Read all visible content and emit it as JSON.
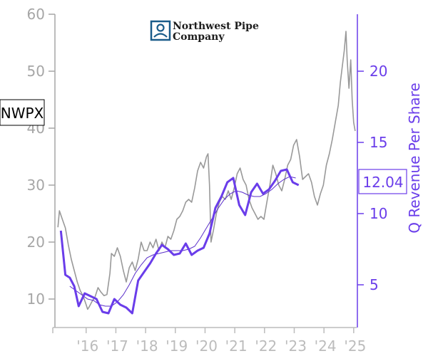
{
  "chart_data": {
    "type": "line",
    "ticker": "NWPX",
    "logo": {
      "line1": "Northwest Pipe",
      "line2": "Company",
      "icon": "person-badge-icon"
    },
    "ylabel_right": "Q Revenue Per Share",
    "current_value_label": "12.04",
    "x_axis": {
      "range": [
        2014.95,
        2025.1
      ],
      "ticks": [
        {
          "label": "'16",
          "value": 2016.0
        },
        {
          "label": "'17",
          "value": 2017.0
        },
        {
          "label": "'18",
          "value": 2018.0
        },
        {
          "label": "'19",
          "value": 2019.0
        },
        {
          "label": "'20",
          "value": 2020.0
        },
        {
          "label": "'21",
          "value": 2021.0
        },
        {
          "label": "'22",
          "value": 2022.0
        },
        {
          "label": "'23",
          "value": 2023.0
        },
        {
          "label": "'24",
          "value": 2024.0
        },
        {
          "label": "'25",
          "value": 2025.0
        }
      ]
    },
    "y_left": {
      "range": [
        5,
        60
      ],
      "ticks": [
        {
          "label": "10",
          "value": 10
        },
        {
          "label": "20",
          "value": 20
        },
        {
          "label": "30",
          "value": 30
        },
        {
          "label": "40",
          "value": 40
        },
        {
          "label": "50",
          "value": 50
        },
        {
          "label": "60",
          "value": 60
        }
      ]
    },
    "y_right": {
      "range": [
        2,
        24
      ],
      "ticks": [
        {
          "label": "5",
          "value": 5
        },
        {
          "label": "10",
          "value": 10
        },
        {
          "label": "15",
          "value": 15
        },
        {
          "label": "20",
          "value": 20
        }
      ]
    },
    "colors": {
      "price": "#999999",
      "revenue": "#6a3dea",
      "revenue_avg": "#5a2fc9",
      "left_axis": "#a6a6a6",
      "x_axis": "#bcbcbc"
    },
    "series": [
      {
        "axis": "left",
        "values": [
          [
            2015.05,
            22.6
          ],
          [
            2015.1,
            25.5
          ],
          [
            2015.2,
            24.0
          ],
          [
            2015.3,
            22.5
          ],
          [
            2015.4,
            19.5
          ],
          [
            2015.5,
            17.0
          ],
          [
            2015.6,
            15.0
          ],
          [
            2015.7,
            13.0
          ],
          [
            2015.8,
            11.5
          ],
          [
            2015.9,
            10.5
          ],
          [
            2016.0,
            9.0
          ],
          [
            2016.05,
            8.2
          ],
          [
            2016.1,
            8.6
          ],
          [
            2016.2,
            9.6
          ],
          [
            2016.3,
            10.4
          ],
          [
            2016.4,
            12.0
          ],
          [
            2016.5,
            11.2
          ],
          [
            2016.6,
            10.6
          ],
          [
            2016.7,
            10.8
          ],
          [
            2016.8,
            14.5
          ],
          [
            2016.85,
            18.0
          ],
          [
            2016.95,
            17.5
          ],
          [
            2017.05,
            19.0
          ],
          [
            2017.15,
            17.5
          ],
          [
            2017.25,
            15.0
          ],
          [
            2017.35,
            13.0
          ],
          [
            2017.45,
            15.5
          ],
          [
            2017.55,
            16.5
          ],
          [
            2017.65,
            15.0
          ],
          [
            2017.75,
            17.0
          ],
          [
            2017.85,
            20.0
          ],
          [
            2017.95,
            18.5
          ],
          [
            2018.05,
            18.5
          ],
          [
            2018.15,
            20.0
          ],
          [
            2018.25,
            19.0
          ],
          [
            2018.35,
            20.5
          ],
          [
            2018.45,
            18.5
          ],
          [
            2018.55,
            20.0
          ],
          [
            2018.65,
            19.0
          ],
          [
            2018.75,
            21.0
          ],
          [
            2018.85,
            20.5
          ],
          [
            2018.95,
            22.0
          ],
          [
            2019.05,
            24.0
          ],
          [
            2019.15,
            24.5
          ],
          [
            2019.25,
            25.5
          ],
          [
            2019.35,
            27.0
          ],
          [
            2019.45,
            27.5
          ],
          [
            2019.55,
            27.0
          ],
          [
            2019.65,
            29.5
          ],
          [
            2019.75,
            32.5
          ],
          [
            2019.85,
            34.0
          ],
          [
            2019.95,
            33.0
          ],
          [
            2020.05,
            35.0
          ],
          [
            2020.1,
            35.5
          ],
          [
            2020.15,
            30.0
          ],
          [
            2020.2,
            20.0
          ],
          [
            2020.28,
            22.0
          ],
          [
            2020.38,
            25.0
          ],
          [
            2020.48,
            27.0
          ],
          [
            2020.58,
            28.0
          ],
          [
            2020.68,
            27.5
          ],
          [
            2020.78,
            29.0
          ],
          [
            2020.88,
            27.5
          ],
          [
            2020.98,
            29.5
          ],
          [
            2021.08,
            32.0
          ],
          [
            2021.18,
            33.0
          ],
          [
            2021.28,
            31.0
          ],
          [
            2021.38,
            30.0
          ],
          [
            2021.48,
            27.5
          ],
          [
            2021.58,
            26.0
          ],
          [
            2021.68,
            25.0
          ],
          [
            2021.78,
            24.0
          ],
          [
            2021.88,
            24.5
          ],
          [
            2021.98,
            24.0
          ],
          [
            2022.08,
            27.0
          ],
          [
            2022.18,
            30.0
          ],
          [
            2022.28,
            33.5
          ],
          [
            2022.38,
            32.0
          ],
          [
            2022.48,
            30.0
          ],
          [
            2022.58,
            29.0
          ],
          [
            2022.68,
            31.0
          ],
          [
            2022.78,
            33.5
          ],
          [
            2022.88,
            34.5
          ],
          [
            2022.98,
            37.0
          ],
          [
            2023.08,
            38.0
          ],
          [
            2023.18,
            35.0
          ],
          [
            2023.28,
            31.0
          ],
          [
            2023.38,
            31.5
          ],
          [
            2023.48,
            32.0
          ],
          [
            2023.58,
            30.5
          ],
          [
            2023.68,
            28.0
          ],
          [
            2023.78,
            26.5
          ],
          [
            2023.88,
            28.5
          ],
          [
            2023.98,
            30.0
          ],
          [
            2024.08,
            33.5
          ],
          [
            2024.18,
            35.5
          ],
          [
            2024.28,
            38.0
          ],
          [
            2024.38,
            41.0
          ],
          [
            2024.48,
            44.0
          ],
          [
            2024.55,
            48.0
          ],
          [
            2024.62,
            51.0
          ],
          [
            2024.68,
            53.5
          ],
          [
            2024.74,
            57.0
          ],
          [
            2024.78,
            52.0
          ],
          [
            2024.84,
            47.0
          ],
          [
            2024.9,
            52.0
          ],
          [
            2024.95,
            45.0
          ],
          [
            2025.0,
            41.0
          ],
          [
            2025.05,
            39.5
          ]
        ]
      },
      {
        "axis": "right",
        "values": [
          [
            2015.15,
            8.8
          ],
          [
            2015.3,
            5.7
          ],
          [
            2015.45,
            5.5
          ],
          [
            2015.6,
            4.9
          ],
          [
            2015.75,
            3.5
          ],
          [
            2015.95,
            4.4
          ],
          [
            2016.15,
            4.2
          ],
          [
            2016.35,
            4.0
          ],
          [
            2016.55,
            3.1
          ],
          [
            2016.75,
            3.0
          ],
          [
            2016.95,
            4.0
          ],
          [
            2017.15,
            3.6
          ],
          [
            2017.35,
            3.4
          ],
          [
            2017.55,
            3.0
          ],
          [
            2017.75,
            5.3
          ],
          [
            2017.95,
            5.9
          ],
          [
            2018.15,
            6.5
          ],
          [
            2018.35,
            7.2
          ],
          [
            2018.55,
            7.8
          ],
          [
            2018.75,
            7.5
          ],
          [
            2018.95,
            7.1
          ],
          [
            2019.15,
            7.2
          ],
          [
            2019.35,
            7.9
          ],
          [
            2019.55,
            7.1
          ],
          [
            2019.75,
            7.4
          ],
          [
            2019.95,
            7.6
          ],
          [
            2020.15,
            8.6
          ],
          [
            2020.35,
            10.4
          ],
          [
            2020.55,
            11.2
          ],
          [
            2020.75,
            12.2
          ],
          [
            2020.95,
            12.5
          ],
          [
            2021.15,
            10.6
          ],
          [
            2021.35,
            9.9
          ],
          [
            2021.55,
            11.5
          ],
          [
            2021.75,
            12.1
          ],
          [
            2021.95,
            11.4
          ],
          [
            2022.15,
            11.7
          ],
          [
            2022.35,
            12.3
          ],
          [
            2022.55,
            13.0
          ],
          [
            2022.75,
            13.1
          ],
          [
            2022.95,
            12.2
          ],
          [
            2023.15,
            12.0
          ]
        ]
      },
      {
        "axis": "right",
        "values": [
          [
            2015.45,
            4.9
          ],
          [
            2015.65,
            4.6
          ],
          [
            2015.85,
            4.3
          ],
          [
            2016.05,
            4.0
          ],
          [
            2016.25,
            3.9
          ],
          [
            2016.45,
            3.6
          ],
          [
            2016.65,
            3.5
          ],
          [
            2016.85,
            3.5
          ],
          [
            2017.05,
            3.8
          ],
          [
            2017.25,
            4.3
          ],
          [
            2017.45,
            5.0
          ],
          [
            2017.65,
            5.8
          ],
          [
            2017.85,
            6.4
          ],
          [
            2018.05,
            6.9
          ],
          [
            2018.25,
            7.1
          ],
          [
            2018.45,
            7.2
          ],
          [
            2018.65,
            7.3
          ],
          [
            2018.85,
            7.4
          ],
          [
            2019.05,
            7.4
          ],
          [
            2019.25,
            7.4
          ],
          [
            2019.45,
            7.5
          ],
          [
            2019.65,
            7.7
          ],
          [
            2019.85,
            8.3
          ],
          [
            2020.05,
            9.0
          ],
          [
            2020.25,
            9.7
          ],
          [
            2020.45,
            10.4
          ],
          [
            2020.65,
            11.0
          ],
          [
            2020.85,
            11.4
          ],
          [
            2021.05,
            11.6
          ],
          [
            2021.25,
            11.5
          ],
          [
            2021.45,
            11.3
          ],
          [
            2021.65,
            11.2
          ],
          [
            2021.85,
            11.2
          ],
          [
            2022.05,
            11.4
          ],
          [
            2022.25,
            11.7
          ],
          [
            2022.45,
            12.1
          ],
          [
            2022.65,
            12.4
          ],
          [
            2022.85,
            12.6
          ],
          [
            2023.05,
            12.5
          ]
        ]
      }
    ]
  }
}
